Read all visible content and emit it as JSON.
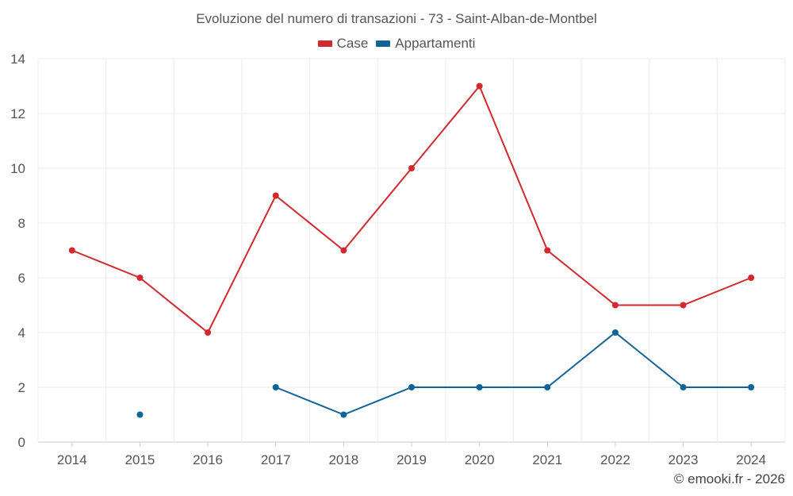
{
  "chart_data": {
    "type": "line",
    "title": "Evoluzione del numero di transazioni - 73 - Saint-Alban-de-Montbel",
    "x": [
      "2014",
      "2015",
      "2016",
      "2017",
      "2018",
      "2019",
      "2020",
      "2021",
      "2022",
      "2023",
      "2024"
    ],
    "ylim": [
      0,
      14
    ],
    "yticks": [
      0,
      2,
      4,
      6,
      8,
      10,
      12,
      14
    ],
    "grid": true,
    "legend_position": "top-center",
    "series": [
      {
        "name": "Case",
        "color": "#d3282d",
        "values": [
          7,
          6,
          4,
          9,
          7,
          10,
          13,
          7,
          5,
          5,
          6
        ]
      },
      {
        "name": "Appartamenti",
        "color": "#0d6496",
        "values": [
          null,
          1,
          null,
          2,
          1,
          2,
          2,
          2,
          4,
          2,
          2
        ]
      }
    ]
  },
  "credit": "© emooki.fr - 2026"
}
